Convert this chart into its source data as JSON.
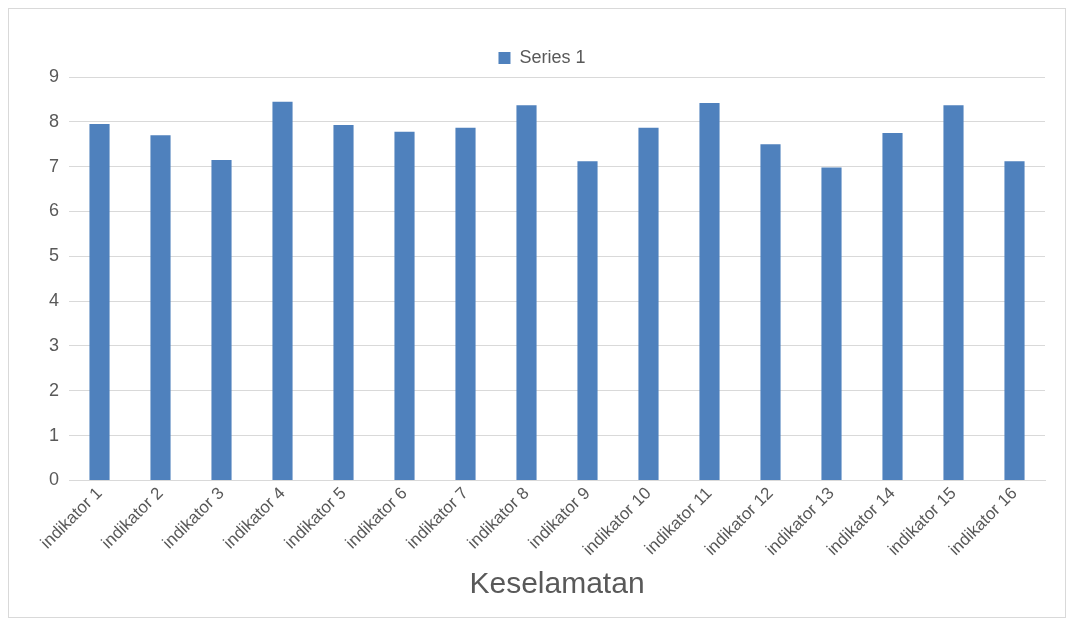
{
  "chart_data": {
    "type": "bar",
    "xlabel": "Keselamatan",
    "categories": [
      "indikator 1",
      "indikator 2",
      "indikator 3",
      "indikator 4",
      "indikator 5",
      "indikator 6",
      "indikator 7",
      "indikator 8",
      "indikator 9",
      "indikator 10",
      "indikator 11",
      "indikator 12",
      "indikator 13",
      "indikator 14",
      "indikator 15",
      "indikator 16"
    ],
    "series": [
      {
        "name": "Series 1",
        "color": "#4f81bd",
        "values": [
          7.95,
          7.7,
          7.15,
          8.45,
          7.93,
          7.78,
          7.87,
          8.37,
          7.12,
          7.87,
          8.42,
          7.5,
          6.98,
          7.75,
          8.37,
          7.12
        ]
      }
    ],
    "ylim": [
      0,
      9
    ],
    "yticks": [
      0,
      1,
      2,
      3,
      4,
      5,
      6,
      7,
      8,
      9
    ],
    "grid": "y",
    "legend": "top"
  }
}
